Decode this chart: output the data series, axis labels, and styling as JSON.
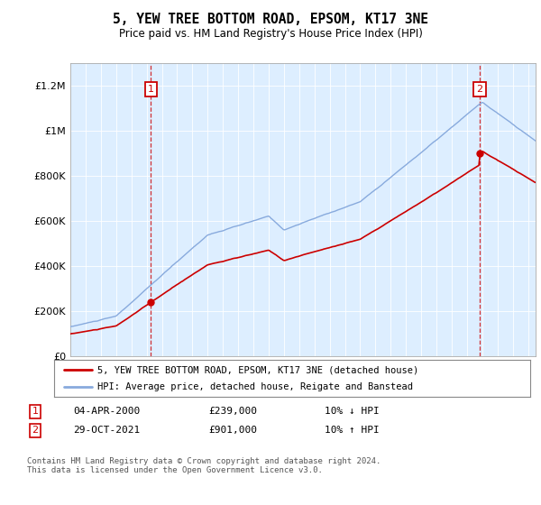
{
  "title": "5, YEW TREE BOTTOM ROAD, EPSOM, KT17 3NE",
  "subtitle": "Price paid vs. HM Land Registry's House Price Index (HPI)",
  "legend_line1": "5, YEW TREE BOTTOM ROAD, EPSOM, KT17 3NE (detached house)",
  "legend_line2": "HPI: Average price, detached house, Reigate and Banstead",
  "annotation1_date": "04-APR-2000",
  "annotation1_price": "£239,000",
  "annotation1_hpi": "10% ↓ HPI",
  "annotation1_year": 2000.27,
  "annotation1_value": 239000,
  "annotation2_date": "29-OCT-2021",
  "annotation2_price": "£901,000",
  "annotation2_hpi": "10% ↑ HPI",
  "annotation2_year": 2021.83,
  "annotation2_value": 901000,
  "price_color": "#cc0000",
  "hpi_color": "#88aadd",
  "fig_bg_color": "#ffffff",
  "plot_bg_color": "#ddeeff",
  "annotation_box_color": "#cc0000",
  "ylim": [
    0,
    1300000
  ],
  "yticks": [
    0,
    200000,
    400000,
    600000,
    800000,
    1000000,
    1200000
  ],
  "ytick_labels": [
    "£0",
    "£200K",
    "£400K",
    "£600K",
    "£800K",
    "£1M",
    "£1.2M"
  ],
  "xlim_start": 1995,
  "xlim_end": 2025.5,
  "footer": "Contains HM Land Registry data © Crown copyright and database right 2024.\nThis data is licensed under the Open Government Licence v3.0."
}
